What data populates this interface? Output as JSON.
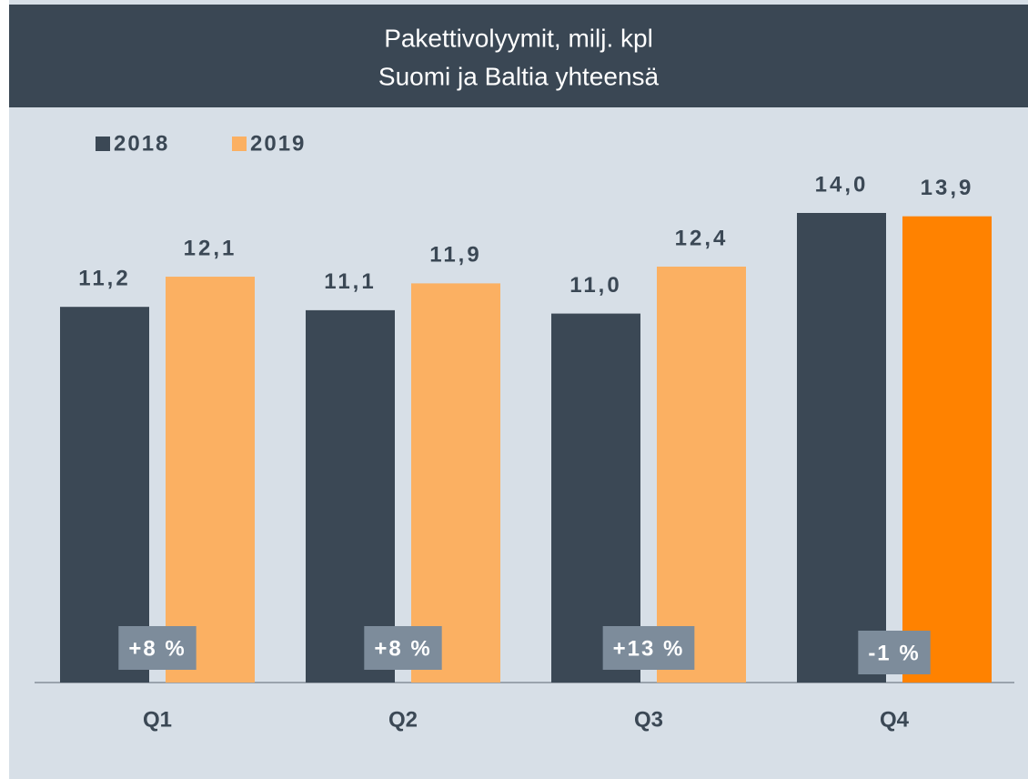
{
  "chart_data": {
    "type": "bar",
    "title": [
      "Pakettivolyymit, milj. kpl",
      "Suomi ja Baltia yhteensä"
    ],
    "categories": [
      "Q1",
      "Q2",
      "Q3",
      "Q4"
    ],
    "series": [
      {
        "name": "2018",
        "color": "#3b4855",
        "values": [
          11.2,
          11.1,
          11.0,
          14.0
        ],
        "value_labels": [
          "11,2",
          "11,1",
          "11,0",
          "14,0"
        ]
      },
      {
        "name": "2019",
        "color": "#fbb062",
        "colors": [
          "#fbb062",
          "#fbb062",
          "#fbb062",
          "#ff8200"
        ],
        "values": [
          12.1,
          11.9,
          12.4,
          13.9
        ],
        "value_labels": [
          "12,1",
          "11,9",
          "12,4",
          "13,9"
        ]
      }
    ],
    "annotations": [
      "+8 %",
      "+8 %",
      "+13 %",
      "-1 %"
    ]
  }
}
